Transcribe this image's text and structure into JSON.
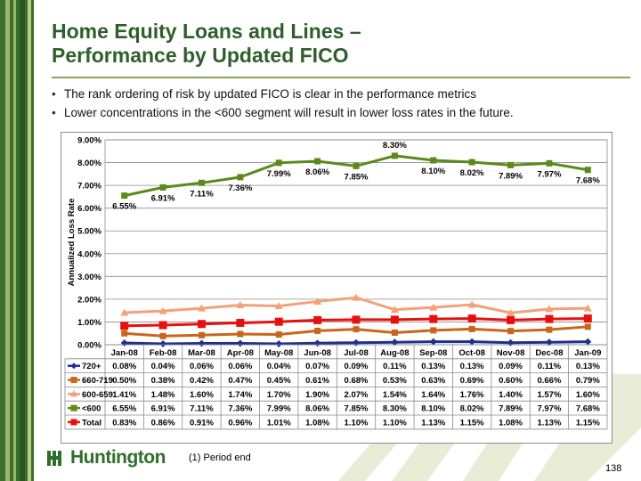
{
  "slide": {
    "title_line1": "Home Equity Loans and Lines –",
    "title_line2": "Performance by Updated FICO",
    "bullets": [
      "The rank ordering of risk by updated FICO is clear in the performance metrics",
      "Lower concentrations in the <600 segment will result in lower loss rates in the future."
    ],
    "footnote": "(1)  Period end",
    "page_number": "138",
    "logo_text": "Huntington"
  },
  "colors": {
    "title": "#2e5f2a",
    "sidebar_dark": "#3c6e2e",
    "sidebar_light": "#9bb56a",
    "chart_border": "#7f7f7f"
  },
  "chart_data": {
    "type": "line",
    "categories": [
      "Jan-08",
      "Feb-08",
      "Mar-08",
      "Apr-08",
      "May-08",
      "Jun-08",
      "Jul-08",
      "Aug-08",
      "Sep-08",
      "Oct-08",
      "Nov-08",
      "Dec-08",
      "Jan-09"
    ],
    "ylabel": "Annualized Loss Rate",
    "ylim": [
      0,
      9
    ],
    "yticks": [
      "0.00%",
      "1.00%",
      "2.00%",
      "3.00%",
      "4.00%",
      "5.00%",
      "6.00%",
      "7.00%",
      "8.00%",
      "9.00%"
    ],
    "grid": true,
    "legend": "data-table-left",
    "series": [
      {
        "name": "720+",
        "color": "#1f2f8f",
        "marker": "diamond",
        "values": [
          0.08,
          0.04,
          0.06,
          0.06,
          0.04,
          0.07,
          0.09,
          0.11,
          0.13,
          0.13,
          0.09,
          0.11,
          0.13
        ],
        "labels": [
          "0.08%",
          "0.04%",
          "0.06%",
          "0.06%",
          "0.04%",
          "0.07%",
          "0.09%",
          "0.11%",
          "0.13%",
          "0.13%",
          "0.09%",
          "0.11%",
          "0.13%"
        ]
      },
      {
        "name": "660-719",
        "color": "#c8671b",
        "marker": "square",
        "values": [
          0.5,
          0.38,
          0.42,
          0.47,
          0.45,
          0.61,
          0.68,
          0.53,
          0.63,
          0.69,
          0.6,
          0.66,
          0.79
        ],
        "labels": [
          "0.50%",
          "0.38%",
          "0.42%",
          "0.47%",
          "0.45%",
          "0.61%",
          "0.68%",
          "0.53%",
          "0.63%",
          "0.69%",
          "0.60%",
          "0.66%",
          "0.79%"
        ]
      },
      {
        "name": "600-659",
        "color": "#f4a07a",
        "marker": "triangle",
        "values": [
          1.41,
          1.48,
          1.6,
          1.74,
          1.7,
          1.9,
          2.07,
          1.54,
          1.64,
          1.76,
          1.4,
          1.57,
          1.6
        ],
        "labels": [
          "1.41%",
          "1.48%",
          "1.60%",
          "1.74%",
          "1.70%",
          "1.90%",
          "2.07%",
          "1.54%",
          "1.64%",
          "1.76%",
          "1.40%",
          "1.57%",
          "1.60%"
        ]
      },
      {
        "name": "<600",
        "color": "#5a8a1a",
        "marker": "square",
        "values": [
          6.55,
          6.91,
          7.11,
          7.36,
          7.99,
          8.06,
          7.85,
          8.3,
          8.1,
          8.02,
          7.89,
          7.97,
          7.68
        ],
        "labels": [
          "6.55%",
          "6.91%",
          "7.11%",
          "7.36%",
          "7.99%",
          "8.06%",
          "7.85%",
          "8.30%",
          "8.10%",
          "8.02%",
          "7.89%",
          "7.97%",
          "7.68%"
        ]
      },
      {
        "name": "Total",
        "color": "#e8100f",
        "marker": "square",
        "values": [
          0.83,
          0.86,
          0.91,
          0.96,
          1.01,
          1.08,
          1.1,
          1.1,
          1.13,
          1.15,
          1.08,
          1.13,
          1.15
        ],
        "labels": [
          "0.83%",
          "0.86%",
          "0.91%",
          "0.96%",
          "1.01%",
          "1.08%",
          "1.10%",
          "1.10%",
          "1.13%",
          "1.15%",
          "1.08%",
          "1.13%",
          "1.15%"
        ]
      }
    ],
    "point_labels_series": "<600"
  }
}
